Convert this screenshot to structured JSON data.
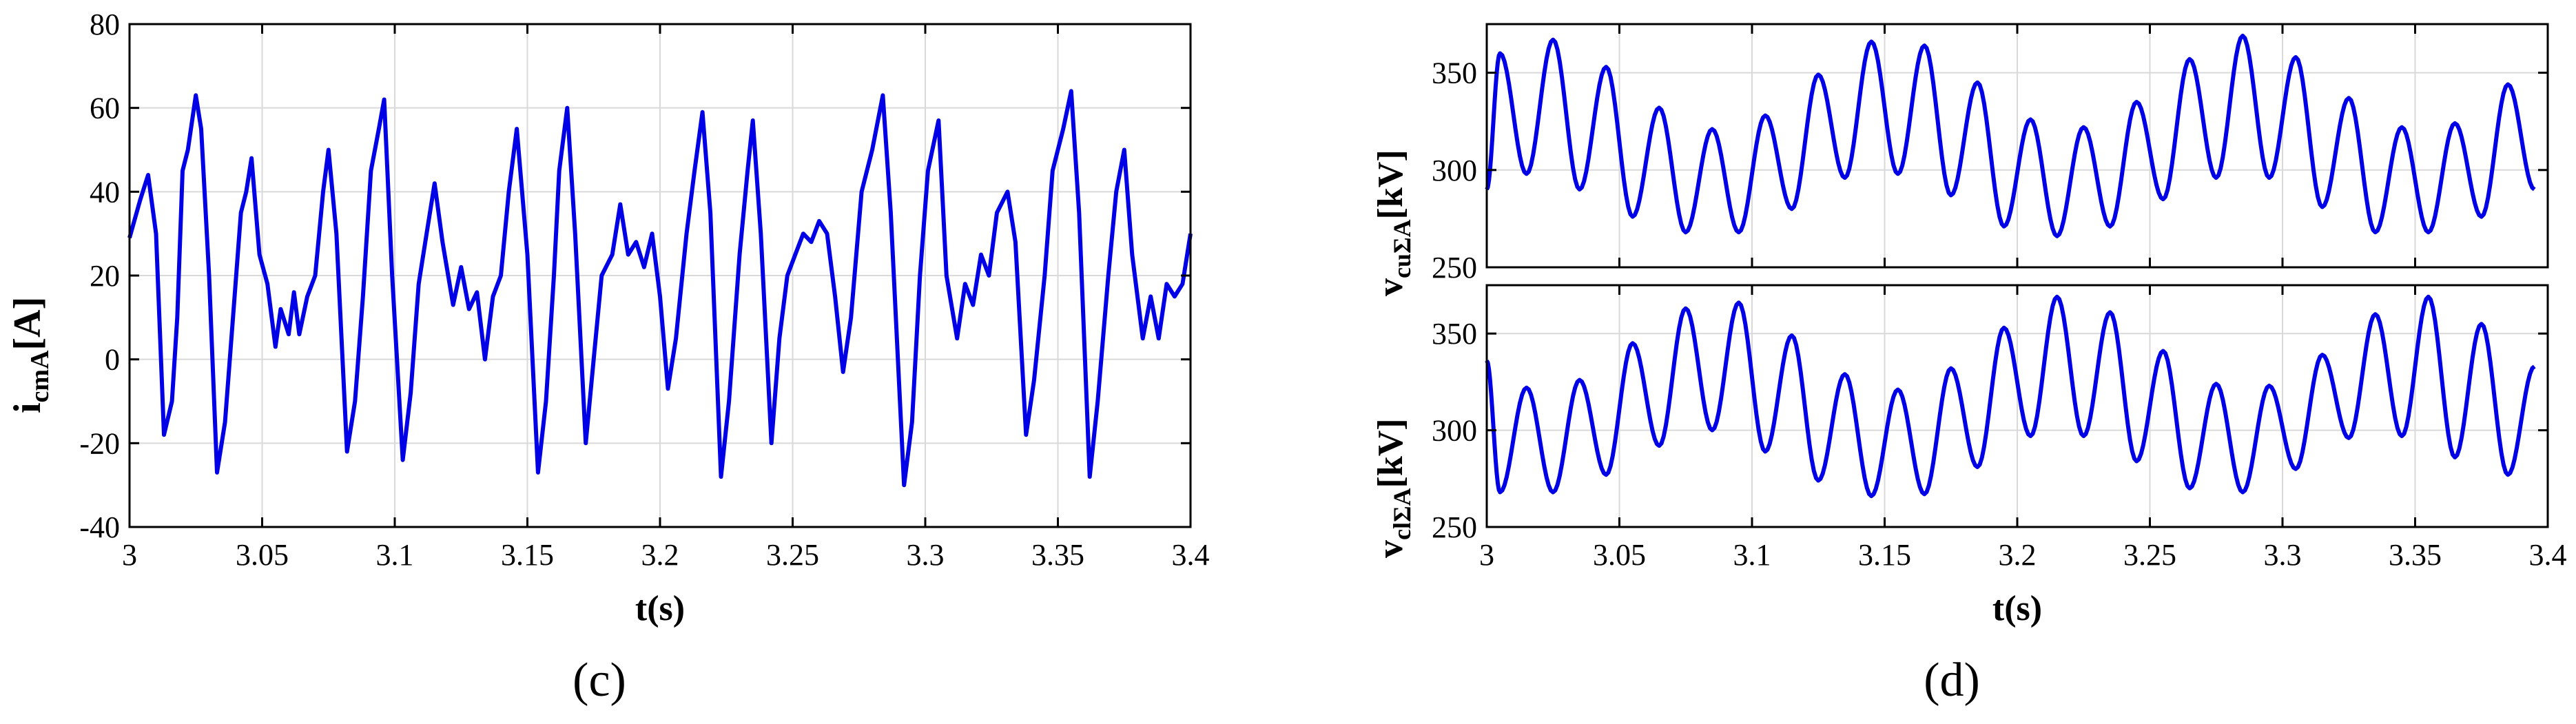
{
  "colors": {
    "line": "#0000e6",
    "grid": "#d9d9d9",
    "axis": "#000000"
  },
  "panels": {
    "c": {
      "label": "(c)"
    },
    "d": {
      "label": "(d)"
    }
  },
  "chart_data": [
    {
      "type": "line",
      "panel": "(c)",
      "ylabel": "i",
      "ylabel_sub": "cmA",
      "ylabel_unit": "[A]",
      "xlabel": "t(s)",
      "xlim": [
        3,
        3.4
      ],
      "ylim": [
        -40,
        80
      ],
      "xticks": [
        3,
        3.05,
        3.1,
        3.15,
        3.2,
        3.25,
        3.3,
        3.35,
        3.4
      ],
      "xtick_labels": [
        "3",
        "3.05",
        "3.1",
        "3.15",
        "3.2",
        "3.25",
        "3.3",
        "3.35",
        "3.4"
      ],
      "yticks": [
        -40,
        -20,
        0,
        20,
        40,
        60,
        80
      ],
      "ytick_labels": [
        "-40",
        "-20",
        "0",
        "20",
        "40",
        "60",
        "80"
      ],
      "grid": true,
      "series": [
        {
          "points": [
            [
              3.0,
              29
            ],
            [
              3.004,
              38
            ],
            [
              3.007,
              44
            ],
            [
              3.01,
              30
            ],
            [
              3.013,
              -18
            ],
            [
              3.016,
              -10
            ],
            [
              3.018,
              10
            ],
            [
              3.02,
              45
            ],
            [
              3.022,
              50
            ],
            [
              3.025,
              63
            ],
            [
              3.027,
              55
            ],
            [
              3.03,
              20
            ],
            [
              3.033,
              -27
            ],
            [
              3.036,
              -15
            ],
            [
              3.039,
              10
            ],
            [
              3.042,
              35
            ],
            [
              3.044,
              40
            ],
            [
              3.046,
              48
            ],
            [
              3.049,
              25
            ],
            [
              3.052,
              18
            ],
            [
              3.055,
              3
            ],
            [
              3.057,
              12
            ],
            [
              3.06,
              6
            ],
            [
              3.062,
              16
            ],
            [
              3.064,
              6
            ],
            [
              3.067,
              15
            ],
            [
              3.07,
              20
            ],
            [
              3.073,
              40
            ],
            [
              3.075,
              50
            ],
            [
              3.078,
              30
            ],
            [
              3.082,
              -22
            ],
            [
              3.085,
              -10
            ],
            [
              3.088,
              15
            ],
            [
              3.091,
              45
            ],
            [
              3.094,
              55
            ],
            [
              3.096,
              62
            ],
            [
              3.099,
              20
            ],
            [
              3.103,
              -24
            ],
            [
              3.106,
              -8
            ],
            [
              3.109,
              18
            ],
            [
              3.112,
              30
            ],
            [
              3.115,
              42
            ],
            [
              3.118,
              28
            ],
            [
              3.122,
              13
            ],
            [
              3.125,
              22
            ],
            [
              3.128,
              12
            ],
            [
              3.131,
              16
            ],
            [
              3.134,
              0
            ],
            [
              3.137,
              15
            ],
            [
              3.14,
              20
            ],
            [
              3.143,
              40
            ],
            [
              3.146,
              55
            ],
            [
              3.15,
              25
            ],
            [
              3.154,
              -27
            ],
            [
              3.157,
              -10
            ],
            [
              3.16,
              20
            ],
            [
              3.162,
              45
            ],
            [
              3.165,
              60
            ],
            [
              3.168,
              30
            ],
            [
              3.172,
              -20
            ],
            [
              3.175,
              0
            ],
            [
              3.178,
              20
            ],
            [
              3.182,
              25
            ],
            [
              3.185,
              37
            ],
            [
              3.188,
              25
            ],
            [
              3.191,
              28
            ],
            [
              3.194,
              22
            ],
            [
              3.197,
              30
            ],
            [
              3.2,
              15
            ],
            [
              3.203,
              -7
            ],
            [
              3.206,
              5
            ],
            [
              3.21,
              30
            ],
            [
              3.213,
              45
            ],
            [
              3.216,
              59
            ],
            [
              3.219,
              35
            ],
            [
              3.223,
              -28
            ],
            [
              3.226,
              -10
            ],
            [
              3.23,
              25
            ],
            [
              3.233,
              45
            ],
            [
              3.235,
              57
            ],
            [
              3.238,
              30
            ],
            [
              3.242,
              -20
            ],
            [
              3.245,
              5
            ],
            [
              3.248,
              20
            ],
            [
              3.251,
              25
            ],
            [
              3.254,
              30
            ],
            [
              3.257,
              28
            ],
            [
              3.26,
              33
            ],
            [
              3.263,
              30
            ],
            [
              3.266,
              15
            ],
            [
              3.269,
              -3
            ],
            [
              3.272,
              10
            ],
            [
              3.276,
              40
            ],
            [
              3.28,
              50
            ],
            [
              3.284,
              63
            ],
            [
              3.287,
              35
            ],
            [
              3.292,
              -30
            ],
            [
              3.295,
              -15
            ],
            [
              3.298,
              20
            ],
            [
              3.301,
              45
            ],
            [
              3.305,
              57
            ],
            [
              3.308,
              20
            ],
            [
              3.312,
              5
            ],
            [
              3.315,
              18
            ],
            [
              3.318,
              13
            ],
            [
              3.321,
              25
            ],
            [
              3.324,
              20
            ],
            [
              3.327,
              35
            ],
            [
              3.331,
              40
            ],
            [
              3.334,
              28
            ],
            [
              3.338,
              -18
            ],
            [
              3.341,
              -5
            ],
            [
              3.345,
              20
            ],
            [
              3.348,
              45
            ],
            [
              3.352,
              55
            ],
            [
              3.355,
              64
            ],
            [
              3.358,
              35
            ],
            [
              3.362,
              -28
            ],
            [
              3.365,
              -10
            ],
            [
              3.369,
              20
            ],
            [
              3.372,
              40
            ],
            [
              3.375,
              50
            ],
            [
              3.378,
              25
            ],
            [
              3.382,
              5
            ],
            [
              3.385,
              15
            ],
            [
              3.388,
              5
            ],
            [
              3.391,
              18
            ],
            [
              3.394,
              15
            ],
            [
              3.397,
              18
            ],
            [
              3.4,
              30
            ]
          ]
        }
      ]
    },
    {
      "type": "line",
      "panel": "(d)",
      "ylabel": "v",
      "ylabel_sub": "cuΣA",
      "ylabel_unit": "[kV]",
      "xlim": [
        3,
        3.4
      ],
      "ylim": [
        250,
        375
      ],
      "xticks": [
        3,
        3.05,
        3.1,
        3.15,
        3.2,
        3.25,
        3.3,
        3.35,
        3.4
      ],
      "yticks": [
        250,
        300,
        350
      ],
      "ytick_labels": [
        "250",
        "300",
        "350"
      ],
      "grid": true,
      "series": [
        {
          "period": 0.02,
          "phase_start": 3.0,
          "start_value": 290,
          "cycles": [
            [
              360,
              298
            ],
            [
              367,
              290
            ],
            [
              353,
              276
            ],
            [
              332,
              268
            ],
            [
              321,
              268
            ],
            [
              328,
              280
            ],
            [
              349,
              296
            ],
            [
              366,
              298
            ],
            [
              364,
              287
            ],
            [
              345,
              271
            ],
            [
              326,
              266
            ],
            [
              322,
              271
            ],
            [
              335,
              285
            ],
            [
              357,
              296
            ],
            [
              369,
              296
            ],
            [
              358,
              281
            ],
            [
              337,
              268
            ],
            [
              322,
              268
            ],
            [
              324,
              276
            ],
            [
              344,
              290
            ]
          ]
        }
      ]
    },
    {
      "type": "line",
      "panel": "(d)",
      "ylabel": "v",
      "ylabel_sub": "clΣA",
      "ylabel_unit": "[kV]",
      "xlabel": "t(s)",
      "xlim": [
        3,
        3.4
      ],
      "ylim": [
        250,
        375
      ],
      "xticks": [
        3,
        3.05,
        3.1,
        3.15,
        3.2,
        3.25,
        3.3,
        3.35,
        3.4
      ],
      "xtick_labels": [
        "3",
        "3.05",
        "3.1",
        "3.15",
        "3.2",
        "3.25",
        "3.3",
        "3.35",
        "3.4"
      ],
      "yticks": [
        250,
        300,
        350
      ],
      "ytick_labels": [
        "250",
        "300",
        "350"
      ],
      "grid": true,
      "series": [
        {
          "period": 0.02,
          "phase_start": 3.0,
          "start_value": 336,
          "cycles": [
            [
              268,
              322
            ],
            [
              268,
              326
            ],
            [
              277,
              345
            ],
            [
              292,
              363
            ],
            [
              300,
              366
            ],
            [
              289,
              349
            ],
            [
              274,
              329
            ],
            [
              266,
              321
            ],
            [
              267,
              332
            ],
            [
              281,
              353
            ],
            [
              297,
              369
            ],
            [
              297,
              361
            ],
            [
              284,
              341
            ],
            [
              270,
              324
            ],
            [
              268,
              323
            ],
            [
              280,
              339
            ],
            [
              296,
              360
            ],
            [
              297,
              369
            ],
            [
              286,
              355
            ],
            [
              277,
              333
            ]
          ]
        }
      ]
    }
  ]
}
